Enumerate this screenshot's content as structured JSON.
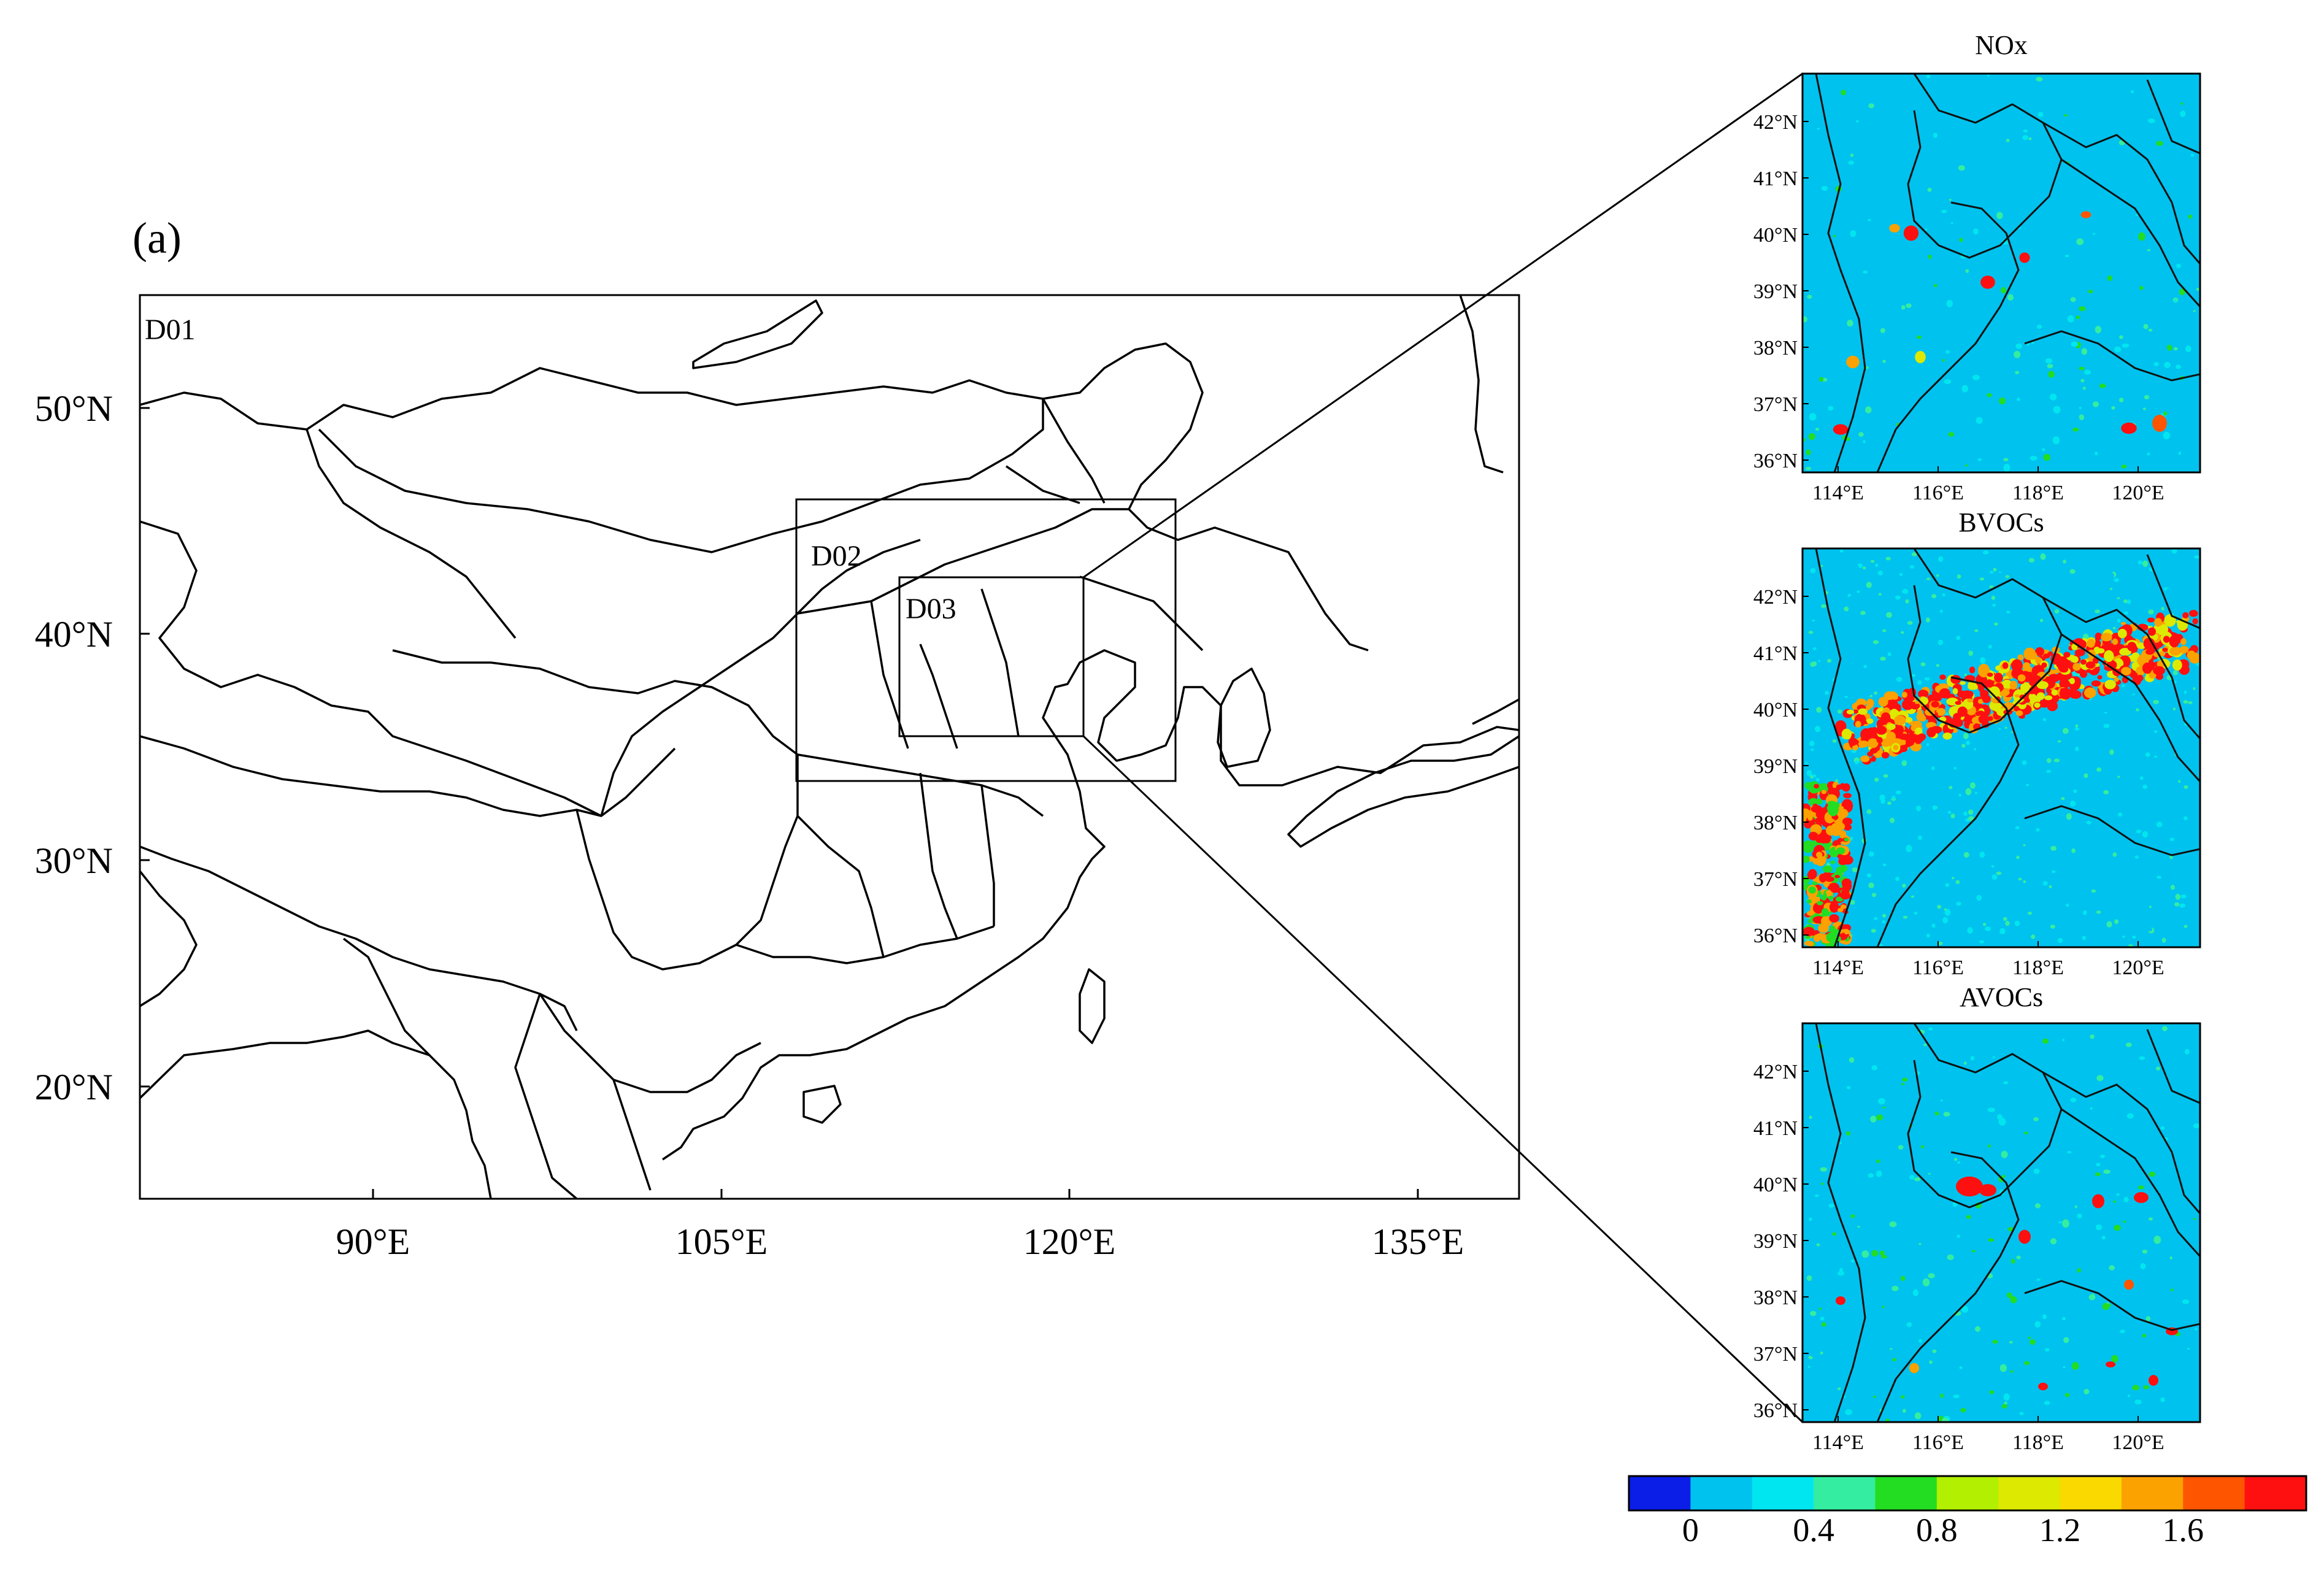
{
  "panel_label": "(a)",
  "main_map": {
    "domains": [
      {
        "name": "D01"
      },
      {
        "name": "D02"
      },
      {
        "name": "D03"
      }
    ],
    "lon_ticks": [
      {
        "value": 90,
        "label": "90°E"
      },
      {
        "value": 105,
        "label": "105°E"
      },
      {
        "value": 120,
        "label": "120°E"
      },
      {
        "value": 135,
        "label": "135°E"
      }
    ],
    "lat_ticks": [
      {
        "value": 20,
        "label": "20°N"
      },
      {
        "value": 30,
        "label": "30°N"
      },
      {
        "value": 40,
        "label": "40°N"
      },
      {
        "value": 50,
        "label": "50°N"
      }
    ]
  },
  "inset_maps": [
    {
      "title": "NOx"
    },
    {
      "title": "BVOCs"
    },
    {
      "title": "AVOCs"
    }
  ],
  "inset_axes": {
    "lat_ticks": [
      "42°N",
      "41°N",
      "40°N",
      "39°N",
      "38°N",
      "37°N",
      "36°N"
    ],
    "lon_ticks": [
      "114°E",
      "116°E",
      "118°E",
      "120°E"
    ]
  },
  "colorbar": {
    "colors": [
      "#0a1ee8",
      "#00c2ee",
      "#00e6f0",
      "#35eda0",
      "#22dd22",
      "#b2ef00",
      "#dde900",
      "#f9d900",
      "#fba100",
      "#fd5500",
      "#ff1010"
    ],
    "tick_labels": [
      "0",
      "0.4",
      "0.8",
      "1.2",
      "1.6"
    ]
  },
  "colors": {
    "ocean_fill": "#00c2ee",
    "boundary": "#000000"
  }
}
